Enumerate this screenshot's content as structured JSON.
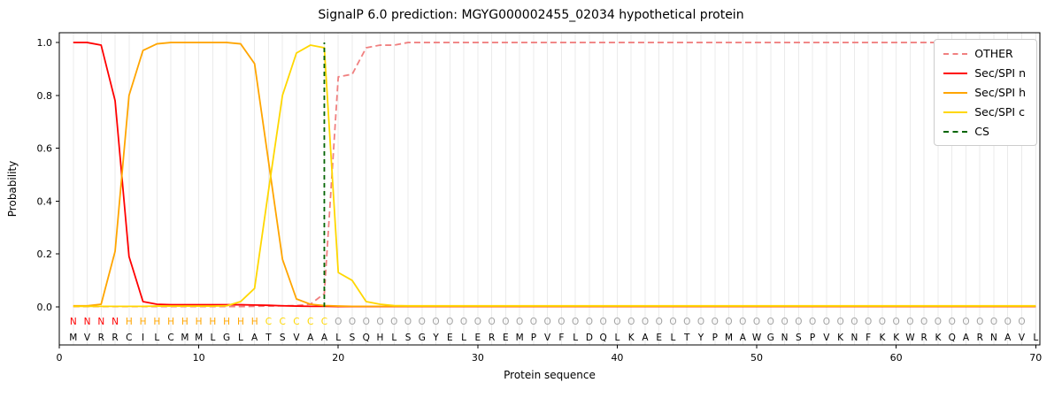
{
  "chart_data": {
    "type": "line",
    "title": "SignalP 6.0 prediction: MGYG000002455_02034 hypothetical protein",
    "xlabel": "Protein sequence",
    "ylabel": "Probability",
    "xlim": [
      0,
      70.3
    ],
    "ylim": [
      -0.144,
      1.037
    ],
    "xticks": [
      0,
      10,
      20,
      30,
      40,
      50,
      60,
      70
    ],
    "yticks": [
      0.0,
      0.2,
      0.4,
      0.6,
      0.8,
      1.0
    ],
    "grid": "vertical-gridline-per-residue",
    "legend_position": "upper right",
    "sequence": "MVRRCILCMMLGLATSVAALSQHLSGYELEREMPVFLDQLKAELTYPMAWGNSPVKNFKKWRKQARNAVL",
    "region_labels": "NNNNHHHHHHHHHHCCCCCOOOOOOOOOOOOOOOOOOOOOOOOOOOOOOOOOOOOOOOOOOOOOOOOOO",
    "region_colors": {
      "N": "#ff0000",
      "H": "#ffa500",
      "C": "#ffd700",
      "O": "#a3a3a3"
    },
    "series": [
      {
        "name": "OTHER",
        "color": "#f08080",
        "dash": "dashed",
        "values": [
          0.001,
          0.001,
          0.001,
          0.001,
          0.001,
          0.001,
          0.001,
          0.001,
          0.001,
          0.001,
          0.001,
          0.001,
          0.001,
          0.002,
          0.003,
          0.004,
          0.005,
          0.01,
          0.05,
          0.87,
          0.88,
          0.98,
          0.99,
          0.99,
          1.0,
          1.0,
          1.0,
          1.0,
          1.0,
          1.0,
          1.0,
          1.0,
          1.0,
          1.0,
          1.0,
          1.0,
          1.0,
          1.0,
          1.0,
          1.0,
          1.0,
          1.0,
          1.0,
          1.0,
          1.0,
          1.0,
          1.0,
          1.0,
          1.0,
          1.0,
          1.0,
          1.0,
          1.0,
          1.0,
          1.0,
          1.0,
          1.0,
          1.0,
          1.0,
          1.0,
          1.0,
          1.0,
          1.0,
          1.0,
          1.0,
          1.0,
          1.0,
          1.0,
          1.0,
          1.0
        ]
      },
      {
        "name": "Sec/SPI n",
        "color": "#ff0000",
        "dash": "solid",
        "values": [
          1.0,
          1.0,
          0.99,
          0.78,
          0.19,
          0.02,
          0.01,
          0.008,
          0.008,
          0.008,
          0.008,
          0.008,
          0.008,
          0.007,
          0.006,
          0.004,
          0.003,
          0.002,
          0.002,
          0.001,
          0.001,
          0.001,
          0.001,
          0.001,
          0.001,
          0.001,
          0.001,
          0.001,
          0.001,
          0.001,
          0.001,
          0.001,
          0.001,
          0.001,
          0.001,
          0.001,
          0.001,
          0.001,
          0.001,
          0.001,
          0.001,
          0.001,
          0.001,
          0.001,
          0.001,
          0.001,
          0.001,
          0.001,
          0.001,
          0.001,
          0.001,
          0.001,
          0.001,
          0.001,
          0.001,
          0.001,
          0.001,
          0.001,
          0.001,
          0.001,
          0.001,
          0.001,
          0.001,
          0.001,
          0.001,
          0.001,
          0.001,
          0.001,
          0.001,
          0.001
        ]
      },
      {
        "name": "Sec/SPI h",
        "color": "#ffa500",
        "dash": "solid",
        "values": [
          0.004,
          0.004,
          0.01,
          0.21,
          0.8,
          0.97,
          0.995,
          1.0,
          1.0,
          1.0,
          1.0,
          1.0,
          0.995,
          0.92,
          0.55,
          0.18,
          0.03,
          0.01,
          0.005,
          0.003,
          0.002,
          0.002,
          0.002,
          0.002,
          0.002,
          0.002,
          0.002,
          0.002,
          0.002,
          0.002,
          0.002,
          0.002,
          0.002,
          0.002,
          0.002,
          0.002,
          0.002,
          0.002,
          0.002,
          0.002,
          0.002,
          0.002,
          0.002,
          0.002,
          0.002,
          0.002,
          0.002,
          0.002,
          0.002,
          0.002,
          0.002,
          0.002,
          0.002,
          0.002,
          0.002,
          0.002,
          0.002,
          0.002,
          0.002,
          0.002,
          0.002,
          0.002,
          0.002,
          0.002,
          0.002,
          0.002,
          0.002,
          0.002,
          0.002,
          0.002
        ]
      },
      {
        "name": "Sec/SPI c",
        "color": "#ffd700",
        "dash": "solid",
        "values": [
          0.002,
          0.002,
          0.002,
          0.002,
          0.002,
          0.002,
          0.003,
          0.003,
          0.003,
          0.003,
          0.003,
          0.004,
          0.02,
          0.07,
          0.44,
          0.8,
          0.96,
          0.99,
          0.98,
          0.13,
          0.1,
          0.02,
          0.01,
          0.005,
          0.004,
          0.004,
          0.004,
          0.004,
          0.004,
          0.004,
          0.004,
          0.004,
          0.004,
          0.004,
          0.004,
          0.004,
          0.004,
          0.004,
          0.004,
          0.004,
          0.004,
          0.004,
          0.004,
          0.004,
          0.004,
          0.004,
          0.004,
          0.004,
          0.004,
          0.004,
          0.004,
          0.004,
          0.004,
          0.004,
          0.004,
          0.004,
          0.004,
          0.004,
          0.004,
          0.004,
          0.004,
          0.004,
          0.004,
          0.004,
          0.004,
          0.004,
          0.004,
          0.004,
          0.004,
          0.004
        ]
      }
    ],
    "cs_marker": {
      "name": "CS",
      "color": "#006400",
      "dash": "dashed",
      "x": 19
    },
    "legend": [
      {
        "label": "OTHER",
        "color": "#f08080",
        "dash": "dashed"
      },
      {
        "label": "Sec/SPI n",
        "color": "#ff0000",
        "dash": "solid"
      },
      {
        "label": "Sec/SPI h",
        "color": "#ffa500",
        "dash": "solid"
      },
      {
        "label": "Sec/SPI c",
        "color": "#ffd700",
        "dash": "solid"
      },
      {
        "label": "CS",
        "color": "#006400",
        "dash": "dashed"
      }
    ]
  }
}
